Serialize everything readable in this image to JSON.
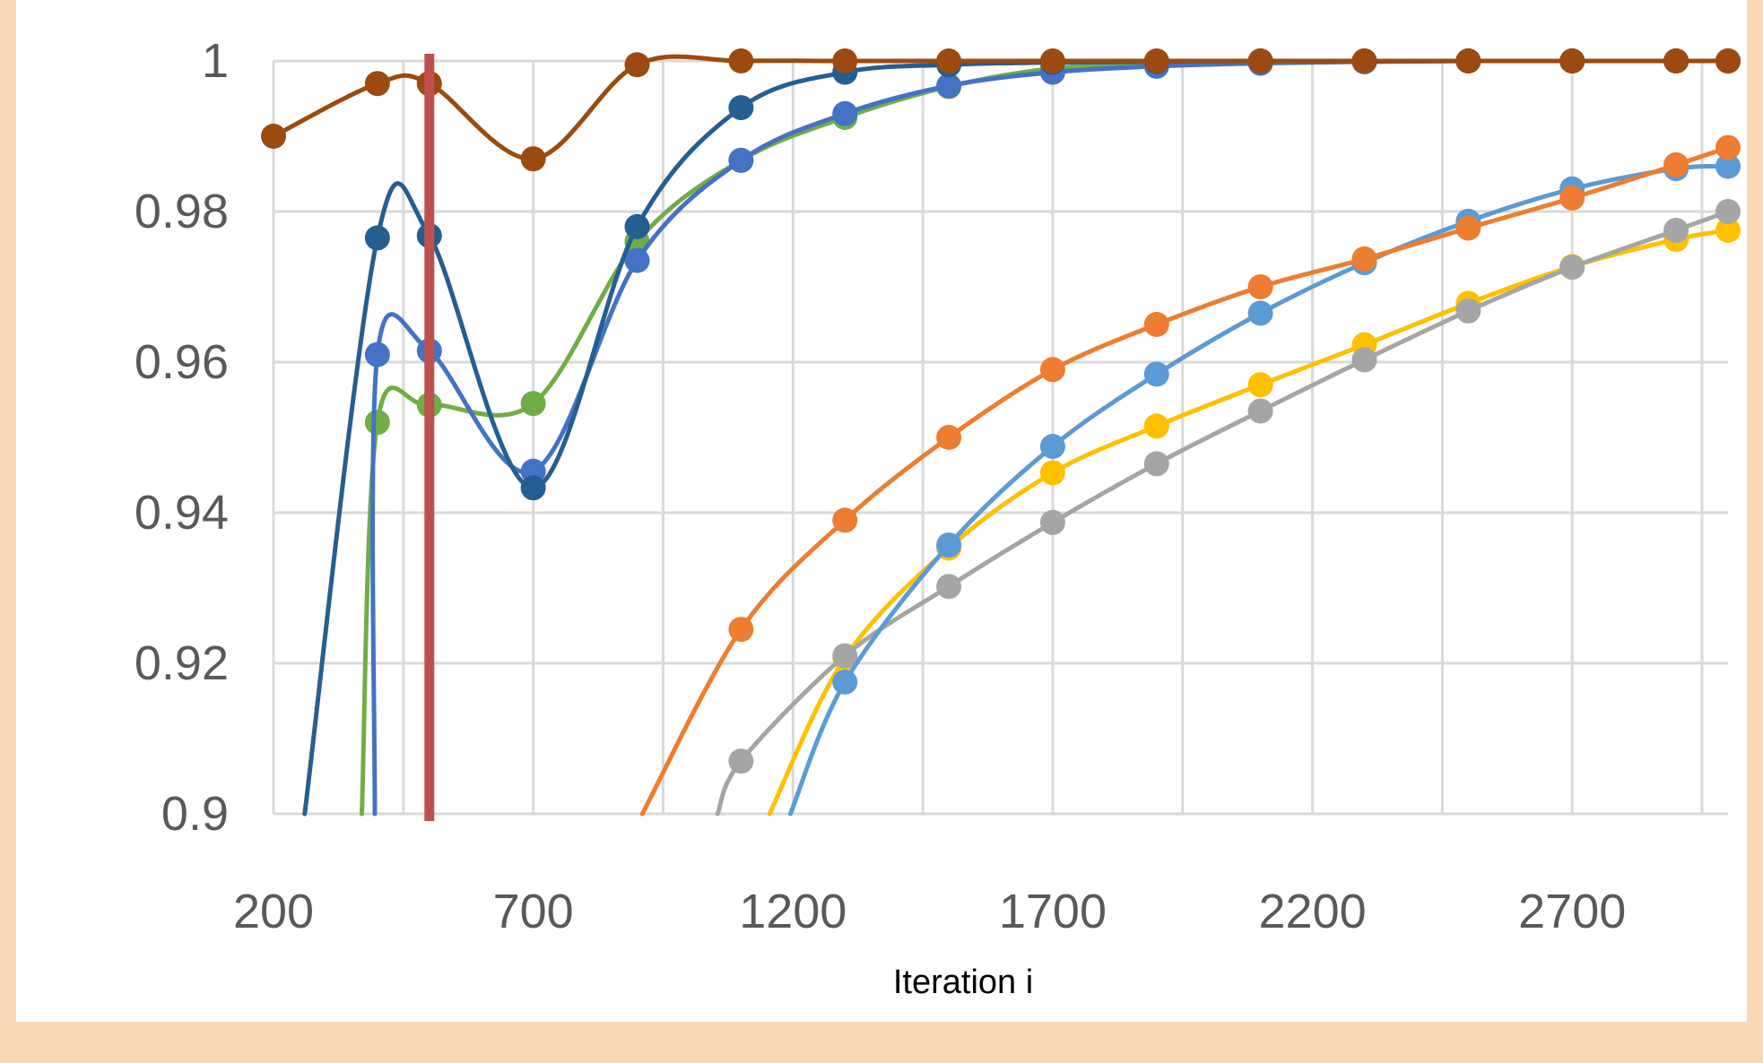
{
  "chart_data": {
    "type": "line",
    "xlabel": "Iteration i",
    "ylabel": "",
    "xlim": [
      200,
      3000
    ],
    "ylim": [
      0.9,
      1.0
    ],
    "x_ticks": [
      200,
      700,
      1200,
      1700,
      2200,
      2700
    ],
    "y_ticks": [
      0.9,
      0.92,
      0.94,
      0.96,
      0.98,
      1
    ],
    "y_tick_labels": [
      "0.9",
      "0.92",
      "0.94",
      "0.96",
      "0.98",
      "1"
    ],
    "grid": true,
    "legend": "none",
    "marker_line_x": 500,
    "marker_line_color": "#c0504d",
    "series": [
      {
        "color": "#9c4a0f",
        "x": [
          200,
          400,
          500,
          700,
          900,
          1100,
          1300,
          1500,
          1700,
          1900,
          2100,
          2300,
          2500,
          2700,
          2900,
          3000
        ],
        "y": [
          0.99,
          0.997,
          0.997,
          0.987,
          0.9995,
          1.0,
          1.0,
          1.0,
          1.0,
          1.0,
          1.0,
          1.0,
          1.0,
          1.0,
          1.0,
          1.0
        ]
      },
      {
        "color": "#255e91",
        "x": [
          260,
          400,
          500,
          700,
          900,
          1100,
          1300,
          1500,
          1700,
          1900,
          2100,
          2300,
          2500,
          2700,
          2900,
          3000
        ],
        "y": [
          0.9,
          0.9765,
          0.9768,
          0.9433,
          0.978,
          0.9938,
          0.9985,
          0.9995,
          0.9998,
          0.9999,
          1.0,
          1.0,
          1.0,
          1.0,
          1.0,
          1.0
        ]
      },
      {
        "color": "#4472c4",
        "x": [
          395,
          400,
          500,
          700,
          900,
          1100,
          1300,
          1500,
          1700,
          1900,
          2100,
          2300,
          2500,
          2700,
          2900,
          3000
        ],
        "y": [
          0.9,
          0.961,
          0.9615,
          0.9455,
          0.9735,
          0.9868,
          0.993,
          0.9967,
          0.9985,
          0.9993,
          0.9997,
          0.9999,
          1.0,
          1.0,
          1.0,
          1.0
        ]
      },
      {
        "color": "#70ad47",
        "x": [
          370,
          400,
          500,
          700,
          900,
          1100,
          1300,
          1500,
          1700,
          1900,
          2100,
          2300,
          2500,
          2700,
          2900,
          3000
        ],
        "y": [
          0.9,
          0.952,
          0.9543,
          0.9545,
          0.976,
          0.9868,
          0.9925,
          0.9966,
          0.999,
          0.9996,
          0.9998,
          0.9999,
          1.0,
          1.0,
          1.0,
          1.0
        ]
      },
      {
        "color": "#ed7d31",
        "x": [
          910,
          1100,
          1300,
          1500,
          1700,
          1900,
          2100,
          2300,
          2500,
          2700,
          2900,
          3000
        ],
        "y": [
          0.9,
          0.9245,
          0.939,
          0.95,
          0.959,
          0.965,
          0.97,
          0.9737,
          0.9778,
          0.9818,
          0.9862,
          0.9885
        ]
      },
      {
        "color": "#5b9bd5",
        "x": [
          1195,
          1300,
          1500,
          1700,
          1900,
          2100,
          2300,
          2500,
          2700,
          2900,
          3000
        ],
        "y": [
          0.9,
          0.9175,
          0.9357,
          0.9488,
          0.9584,
          0.9665,
          0.9732,
          0.9787,
          0.983,
          0.9857,
          0.986
        ]
      },
      {
        "color": "#a5a5a5",
        "x": [
          1055,
          1100,
          1300,
          1500,
          1700,
          1900,
          2100,
          2300,
          2500,
          2700,
          2900,
          3000
        ],
        "y": [
          0.9,
          0.907,
          0.921,
          0.9302,
          0.9387,
          0.9465,
          0.9535,
          0.9603,
          0.9668,
          0.9726,
          0.9775,
          0.98
        ]
      },
      {
        "color": "#ffc000",
        "x": [
          1155,
          1300,
          1500,
          1700,
          1900,
          2100,
          2300,
          2500,
          2700,
          2900,
          3000
        ],
        "y": [
          0.9,
          0.9207,
          0.9353,
          0.9453,
          0.9515,
          0.957,
          0.9623,
          0.9678,
          0.9727,
          0.9763,
          0.9775
        ]
      }
    ]
  }
}
